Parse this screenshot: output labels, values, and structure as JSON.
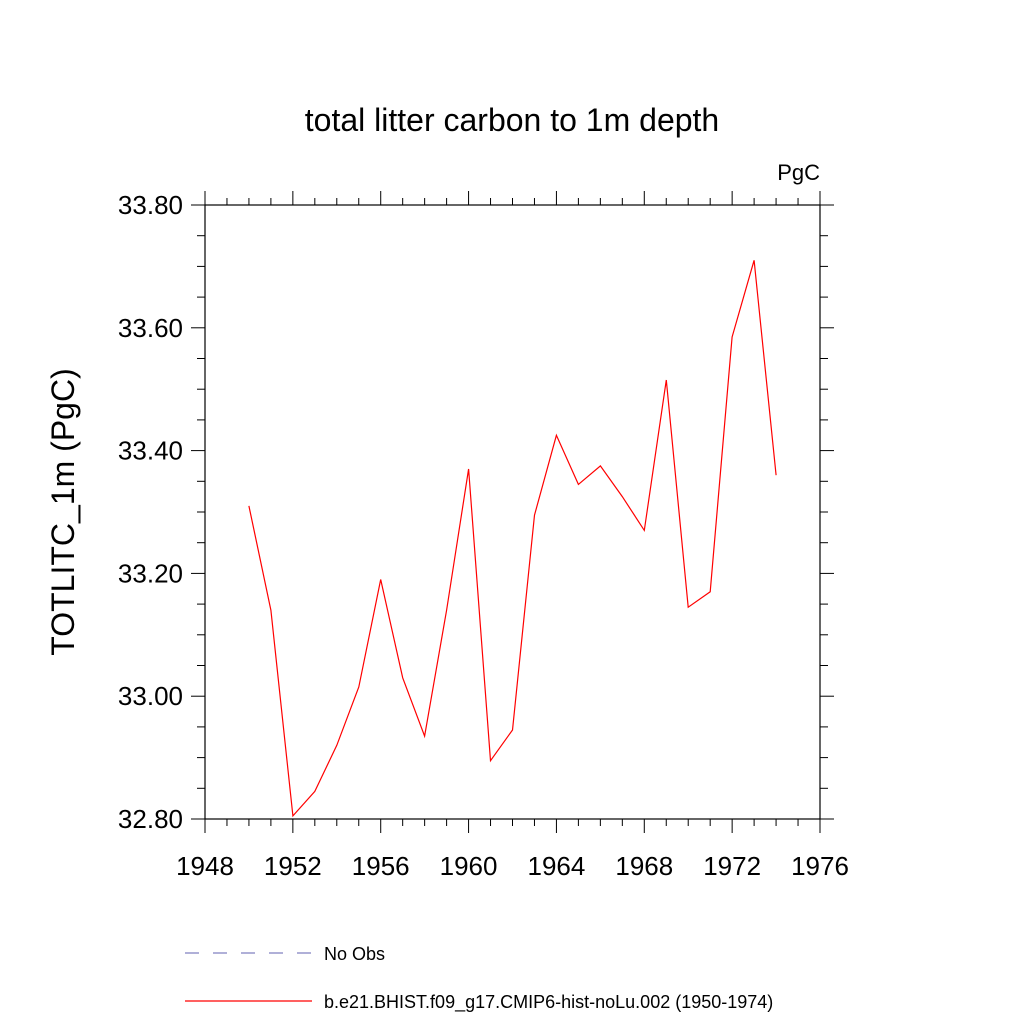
{
  "chart_data": {
    "type": "line",
    "title": "total litter carbon to 1m depth",
    "units_label": "PgC",
    "ylabel": "TOTLITC_1m  (PgC)",
    "xlabel": "",
    "xlim": [
      1948,
      1976
    ],
    "ylim": [
      32.8,
      33.8
    ],
    "x_ticks": [
      "1948",
      "1952",
      "1956",
      "1960",
      "1964",
      "1968",
      "1972",
      "1976"
    ],
    "y_ticks": [
      "32.80",
      "33.00",
      "33.20",
      "33.40",
      "33.60",
      "33.80"
    ],
    "grid": false,
    "legend_placement": "bottom",
    "series": [
      {
        "name": "b.e21.BHIST.f09_g17.CMIP6-hist-noLu.002 (1950-1974)",
        "color": "#ff0000",
        "dash": "solid",
        "x": [
          1950,
          1951,
          1952,
          1953,
          1954,
          1955,
          1956,
          1957,
          1958,
          1959,
          1960,
          1961,
          1962,
          1963,
          1964,
          1965,
          1966,
          1967,
          1968,
          1969,
          1970,
          1971,
          1972,
          1973,
          1974
        ],
        "values": [
          33.31,
          33.14,
          32.805,
          32.845,
          32.92,
          33.015,
          33.19,
          33.03,
          32.935,
          33.14,
          33.37,
          32.895,
          32.945,
          33.295,
          33.425,
          33.345,
          33.375,
          33.325,
          33.27,
          33.515,
          33.145,
          33.17,
          33.585,
          33.71,
          33.36
        ]
      }
    ],
    "legend": [
      {
        "label": "No Obs",
        "color": "#8080c0",
        "dash": "dashed"
      },
      {
        "label": "b.e21.BHIST.f09_g17.CMIP6-hist-noLu.002 (1950-1974)",
        "color": "#ff0000",
        "dash": "solid"
      }
    ]
  }
}
